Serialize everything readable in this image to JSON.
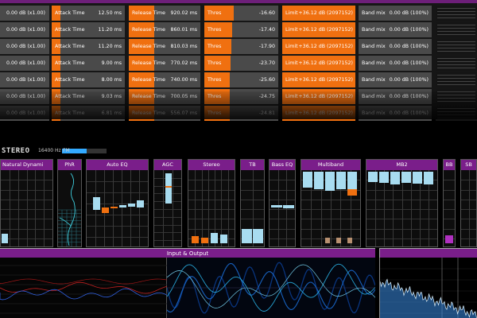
{
  "rows": [
    {
      "level": "0.00 dB (x1.00)",
      "attack_label": "Attack Time",
      "attack_value": "12.50 ms",
      "attack_fill": 0.12,
      "release_label": "Release Time",
      "release_value": "920.02 ms",
      "release_fill": 0.35,
      "thres_label": "Thres",
      "thres_value": "-16.60",
      "thres_fill": 0.4,
      "limit_label": "Limit",
      "limit_value": "+36.12 dB (2097152)",
      "bandmix_label": "Band mix",
      "bandmix_value": "0.00 dB (100%)"
    },
    {
      "level": "0.00 dB (x1.00)",
      "attack_label": "Attack Time",
      "attack_value": "11.20 ms",
      "attack_fill": 0.12,
      "release_label": "Release Time",
      "release_value": "860.01 ms",
      "release_fill": 0.35,
      "thres_label": "Thres",
      "thres_value": "-17.40",
      "thres_fill": 0.38,
      "limit_label": "Limit",
      "limit_value": "+36.12 dB (2097152)",
      "bandmix_label": "Band mix",
      "bandmix_value": "0.00 dB (100%)"
    },
    {
      "level": "0.00 dB (x1.00)",
      "attack_label": "Attack Time",
      "attack_value": "11.20 ms",
      "attack_fill": 0.12,
      "release_label": "Release Time",
      "release_value": "810.03 ms",
      "release_fill": 0.35,
      "thres_label": "Thres",
      "thres_value": "-17.90",
      "thres_fill": 0.37,
      "limit_label": "Limit",
      "limit_value": "+36.12 dB (2097152)",
      "bandmix_label": "Band mix",
      "bandmix_value": "0.00 dB (100%)"
    },
    {
      "level": "0.00 dB (x1.00)",
      "attack_label": "Attack Time",
      "attack_value": "9.00 ms",
      "attack_fill": 0.12,
      "release_label": "Release Time",
      "release_value": "770.02 ms",
      "release_fill": 0.35,
      "thres_label": "Thres",
      "thres_value": "-23.70",
      "thres_fill": 0.35,
      "limit_label": "Limit",
      "limit_value": "+36.12 dB (2097152)",
      "bandmix_label": "Band mix",
      "bandmix_value": "0.00 dB (100%)"
    },
    {
      "level": "0.00 dB (x1.00)",
      "attack_label": "Attack Time",
      "attack_value": "8.00 ms",
      "attack_fill": 0.12,
      "release_label": "Release Time",
      "release_value": "740.00 ms",
      "release_fill": 0.35,
      "thres_label": "Thres",
      "thres_value": "-25.60",
      "thres_fill": 0.34,
      "limit_label": "Limit",
      "limit_value": "+36.12 dB (2097152)",
      "bandmix_label": "Band mix",
      "bandmix_value": "0.00 dB (100%)"
    },
    {
      "level": "0.00 dB (x1.00)",
      "attack_label": "Attack Time",
      "attack_value": "9.03 ms",
      "attack_fill": 0.12,
      "release_label": "Release Time",
      "release_value": "700.05 ms",
      "release_fill": 0.35,
      "thres_label": "Thres",
      "thres_value": "-24.75",
      "thres_fill": 0.34,
      "limit_label": "Limit",
      "limit_value": "+36.12 dB (2097152)",
      "bandmix_label": "Band mix",
      "bandmix_value": "0.00 dB (100%)"
    },
    {
      "level": "0.00 dB (x1.00)",
      "attack_label": "Attack Time",
      "attack_value": "6.81 ms",
      "attack_fill": 0.12,
      "release_label": "Release Time",
      "release_value": "556.07 ms",
      "release_fill": 0.35,
      "thres_label": "Thres",
      "thres_value": "-24.81",
      "thres_fill": 0.34,
      "limit_label": "Limit",
      "limit_value": "+36.12 dB (2097152)",
      "bandmix_label": "Band mix",
      "bandmix_value": "0.00 dB (100%)"
    }
  ],
  "stereo": {
    "label": "STEREO",
    "frequency": "16400 Hz",
    "fm_label": "FM",
    "mpx_level": 0.55
  },
  "panels": {
    "natural_dynamics": "Natural Dynami",
    "phr": "PhR",
    "auto_eq": "Auto EQ",
    "agc": "AGC",
    "stereo": "Stereo",
    "tb": "TB",
    "bass_eq": "Bass EQ",
    "multiband": "Multiband",
    "mb2": "MB2",
    "bb": "BB",
    "sb": "SB"
  },
  "io": {
    "title": "Input & Output"
  },
  "colors": {
    "accent": "#7a1e8a",
    "orange": "#f07010",
    "meter": "#a8dcf0",
    "scope": "#2ab4e8"
  }
}
